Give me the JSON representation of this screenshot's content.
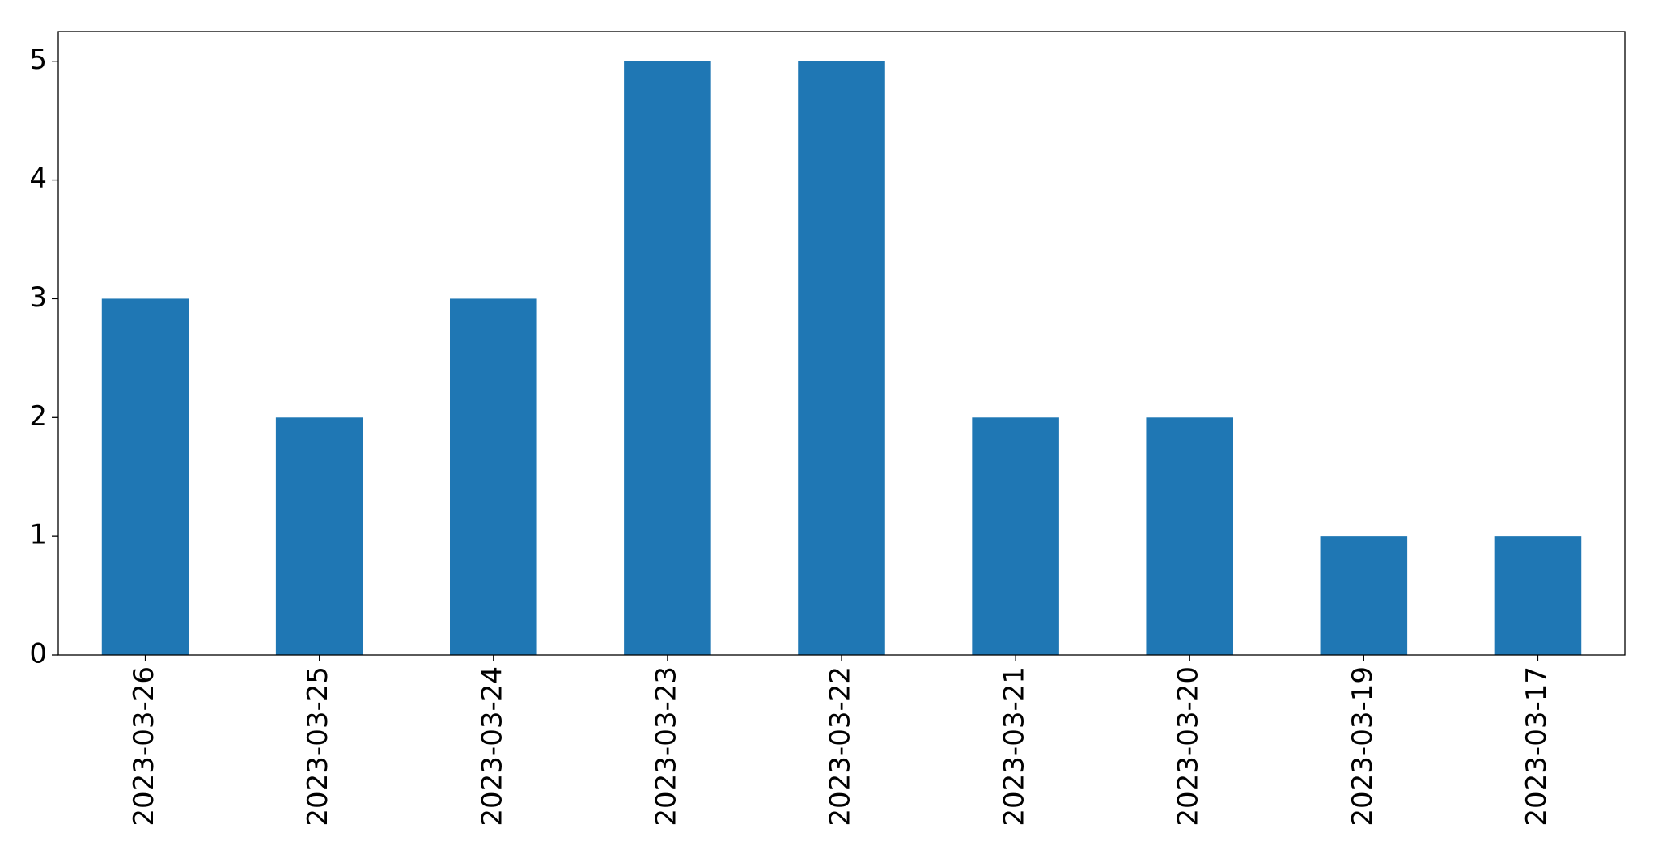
{
  "chart_data": {
    "type": "bar",
    "categories": [
      "2023-03-26",
      "2023-03-25",
      "2023-03-24",
      "2023-03-23",
      "2023-03-22",
      "2023-03-21",
      "2023-03-20",
      "2023-03-19",
      "2023-03-17"
    ],
    "values": [
      3,
      2,
      3,
      5,
      5,
      2,
      2,
      1,
      1
    ],
    "color": "#1f77b4",
    "ylim": [
      0,
      5.25
    ],
    "yticks": [
      0,
      1,
      2,
      3,
      4,
      5
    ],
    "grid": false
  }
}
